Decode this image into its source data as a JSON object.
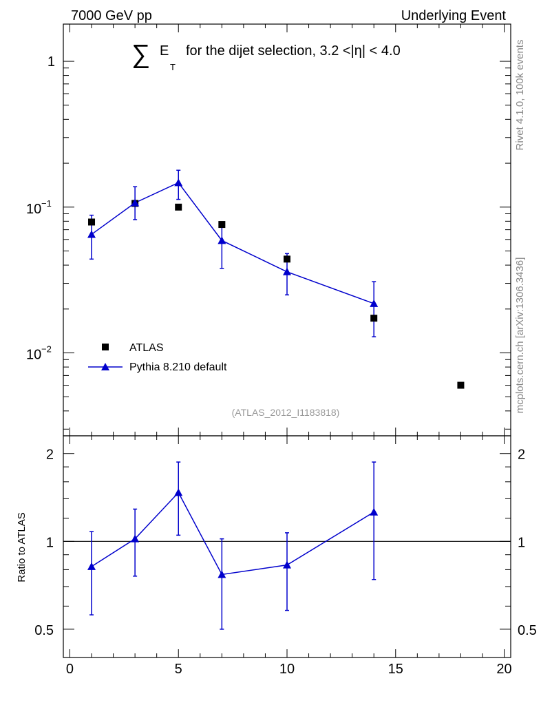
{
  "header": {
    "left": "7000 GeV pp",
    "right": "Underlying Event"
  },
  "side_text": {
    "top": "Rivet 4.1.0,  100k events",
    "bottom": "mcplots.cern.ch [arXiv:1306.3436]"
  },
  "colors": {
    "data": "#000000",
    "mc": "#0000cc",
    "axis": "#000000",
    "side": "#888888"
  },
  "chart_data": {
    "type": "scatter",
    "title": {
      "sum": "∑",
      "e": "E",
      "sub": "T",
      "text": "for the dijet selection, 3.2 <|η| < 4.0"
    },
    "watermark": "(ATLAS_2012_I1183818)",
    "xlim": [
      -0.3,
      20.3
    ],
    "ylim_main": [
      0.0027,
      1.8
    ],
    "ylim_ratio": [
      0.4,
      2.3
    ],
    "x_ticks": [
      0,
      5,
      10,
      15,
      20
    ],
    "x_tick_labels": [
      "0",
      "5",
      "10",
      "15",
      "20"
    ],
    "y_tick_labels_main": [
      {
        "v": 1,
        "label": "1"
      }
    ],
    "y_tick_labels_main_exp": [
      {
        "v": 0.1,
        "base": "10",
        "exp": "−1"
      },
      {
        "v": 0.01,
        "base": "10",
        "exp": "−2"
      }
    ],
    "y_tick_labels_ratio": [
      {
        "v": 2,
        "label": "2"
      },
      {
        "v": 1,
        "label": "1"
      },
      {
        "v": 0.5,
        "label": "0.5"
      }
    ],
    "ratio_ylabel": "Ratio to ATLAS",
    "legend": [
      {
        "name": "ATLAS",
        "marker": "square"
      },
      {
        "name": "Pythia 8.210 default",
        "marker": "triangle"
      }
    ],
    "series": [
      {
        "name": "ATLAS",
        "x": [
          1,
          3,
          5,
          7,
          10,
          14,
          18
        ],
        "y": [
          0.079,
          0.106,
          0.1,
          0.076,
          0.044,
          0.0173,
          0.006
        ]
      },
      {
        "name": "Pythia 8.210 default",
        "x": [
          1,
          3,
          5,
          7,
          10,
          14
        ],
        "y": [
          0.065,
          0.107,
          0.147,
          0.059,
          0.036,
          0.0218
        ],
        "yerr_lo": [
          0.044,
          0.082,
          0.113,
          0.038,
          0.025,
          0.0129
        ],
        "yerr_hi": [
          0.088,
          0.138,
          0.179,
          0.078,
          0.048,
          0.0308
        ]
      }
    ],
    "ratio": {
      "x": [
        1,
        3,
        5,
        7,
        10,
        14
      ],
      "y": [
        0.82,
        1.02,
        1.47,
        0.77,
        0.83,
        1.26
      ],
      "err_lo": [
        0.56,
        0.76,
        1.05,
        0.5,
        0.58,
        0.74
      ],
      "err_hi": [
        1.08,
        1.29,
        1.87,
        1.02,
        1.07,
        1.87
      ]
    }
  }
}
